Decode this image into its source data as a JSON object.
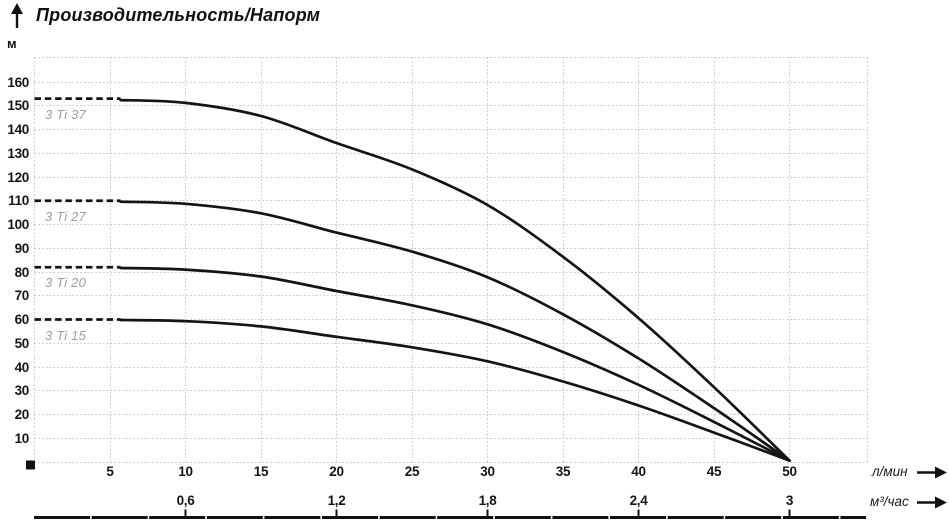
{
  "title": "Производительность/Напорм",
  "axes": {
    "y": {
      "unit": "м"
    },
    "x1": {
      "unit": "л/мин"
    },
    "x2": {
      "unit": "м³/час"
    }
  },
  "colors": {
    "curve": "#141414",
    "grid": "#c6c6c6",
    "curve_label": "#9d9d9d",
    "text": "#111111",
    "axis_line": "#111111"
  },
  "chart_data": {
    "type": "line",
    "title": "Производительность/Напорм",
    "ylabel": "м",
    "y_axis": {
      "label": "м",
      "ticks": [
        10,
        20,
        30,
        40,
        50,
        60,
        70,
        80,
        90,
        100,
        110,
        120,
        130,
        140,
        150,
        160
      ],
      "range": [
        0,
        170.5
      ]
    },
    "x_axis_primary": {
      "label": "л/мин",
      "ticks": [
        5,
        10,
        15,
        20,
        25,
        30,
        35,
        40,
        45,
        50
      ],
      "range": [
        0,
        55.2
      ]
    },
    "x_axis_secondary": {
      "label": "м³/час",
      "tick_labels": [
        "0,6",
        "1,2",
        "1,8",
        "2,4",
        "3"
      ],
      "tick_positions_lmin": [
        10,
        20,
        30,
        40,
        50
      ]
    },
    "grid": "dotted",
    "legend_position": "labels-on-curves",
    "series": [
      {
        "name": "3 Ti 37",
        "head_m": 153,
        "dash_to_x": 5.7,
        "points": [
          [
            5.7,
            152.4
          ],
          [
            10,
            151.2
          ],
          [
            15,
            145.7
          ],
          [
            20,
            134.3
          ],
          [
            25,
            123.2
          ],
          [
            30,
            108.2
          ],
          [
            35,
            86.4
          ],
          [
            40,
            60.6
          ],
          [
            45,
            31.5
          ],
          [
            50,
            0.6
          ]
        ]
      },
      {
        "name": "3 Ti 27",
        "head_m": 110,
        "dash_to_x": 5.7,
        "points": [
          [
            5.7,
            109.6
          ],
          [
            10,
            108.7
          ],
          [
            15,
            104.7
          ],
          [
            20,
            96.6
          ],
          [
            25,
            88.6
          ],
          [
            30,
            77.8
          ],
          [
            35,
            62.2
          ],
          [
            40,
            43.6
          ],
          [
            45,
            22.7
          ],
          [
            50,
            0.6
          ]
        ]
      },
      {
        "name": "3 Ti 20",
        "head_m": 82,
        "dash_to_x": 5.7,
        "points": [
          [
            5.7,
            81.7
          ],
          [
            10,
            81.0
          ],
          [
            15,
            78.1
          ],
          [
            20,
            72.0
          ],
          [
            25,
            66.0
          ],
          [
            30,
            58.0
          ],
          [
            35,
            46.3
          ],
          [
            40,
            32.5
          ],
          [
            45,
            16.9
          ],
          [
            50,
            0.6
          ]
        ]
      },
      {
        "name": "3 Ti 15",
        "head_m": 60,
        "dash_to_x": 5.7,
        "points": [
          [
            5.7,
            59.8
          ],
          [
            10,
            59.3
          ],
          [
            15,
            57.1
          ],
          [
            20,
            52.7
          ],
          [
            25,
            48.3
          ],
          [
            30,
            42.4
          ],
          [
            35,
            33.9
          ],
          [
            40,
            23.8
          ],
          [
            45,
            12.4
          ],
          [
            50,
            0.6
          ]
        ]
      }
    ]
  }
}
